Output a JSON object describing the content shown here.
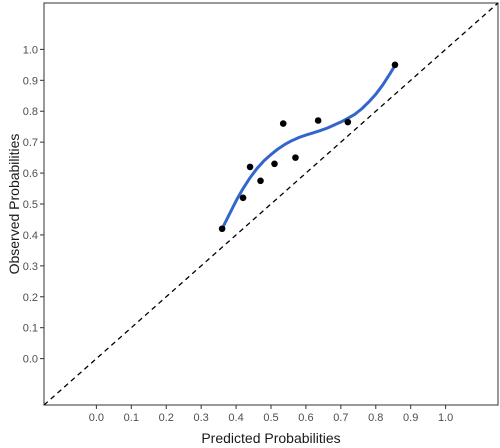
{
  "chart_data": {
    "type": "scatter",
    "title": "",
    "xlabel": "Predicted Probabilities",
    "ylabel": "Observed Probabilities",
    "x_tick_labels": [
      "0.0",
      "0.1",
      "0.2",
      "0.3",
      "0.4",
      "0.5",
      "0.6",
      "0.7",
      "0.8",
      "0.9",
      "1.0"
    ],
    "y_tick_labels": [
      "0.0",
      "0.1",
      "0.2",
      "0.3",
      "0.4",
      "0.5",
      "0.6",
      "0.7",
      "0.8",
      "0.9",
      "1.0"
    ],
    "xlim": [
      -0.15,
      1.15
    ],
    "ylim": [
      -0.15,
      1.15
    ],
    "grid": false,
    "legend": "none",
    "points": [
      {
        "x": 0.36,
        "y": 0.42
      },
      {
        "x": 0.42,
        "y": 0.52
      },
      {
        "x": 0.44,
        "y": 0.62
      },
      {
        "x": 0.47,
        "y": 0.575
      },
      {
        "x": 0.51,
        "y": 0.63
      },
      {
        "x": 0.535,
        "y": 0.76
      },
      {
        "x": 0.57,
        "y": 0.65
      },
      {
        "x": 0.635,
        "y": 0.77
      },
      {
        "x": 0.72,
        "y": 0.765
      },
      {
        "x": 0.855,
        "y": 0.95
      }
    ],
    "smooth_line": {
      "x": [
        0.36,
        0.38,
        0.4,
        0.42,
        0.44,
        0.46,
        0.48,
        0.5,
        0.52,
        0.54,
        0.56,
        0.58,
        0.6,
        0.62,
        0.64,
        0.66,
        0.68,
        0.7,
        0.72,
        0.74,
        0.76,
        0.78,
        0.8,
        0.82,
        0.84,
        0.855
      ],
      "y": [
        0.42,
        0.465,
        0.51,
        0.55,
        0.585,
        0.615,
        0.64,
        0.66,
        0.678,
        0.693,
        0.705,
        0.715,
        0.723,
        0.73,
        0.737,
        0.745,
        0.755,
        0.765,
        0.777,
        0.79,
        0.808,
        0.83,
        0.855,
        0.885,
        0.92,
        0.948
      ]
    },
    "reference_line": {
      "x": [
        -0.15,
        1.15
      ],
      "y": [
        -0.15,
        1.15
      ]
    },
    "colors": {
      "points": "#000000",
      "smooth_line": "#3366cc",
      "reference_line": "#000000",
      "frame": "#333333"
    }
  }
}
